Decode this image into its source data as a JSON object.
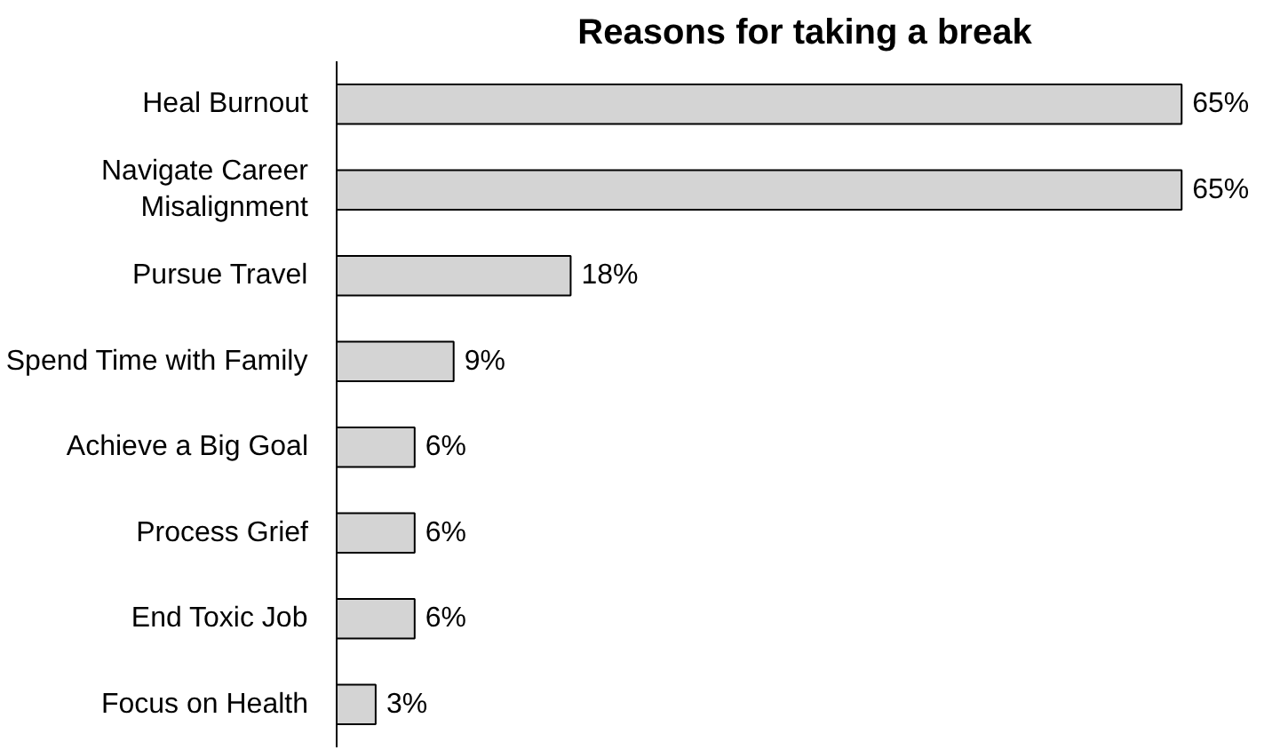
{
  "chart_data": {
    "type": "bar",
    "orientation": "horizontal",
    "title": "Reasons for taking a break",
    "categories": [
      "Heal Burnout",
      "Navigate Career\nMisalignment",
      "Pursue Travel",
      "Spend Time with Family",
      "Achieve a Big Goal",
      "Process Grief",
      "End Toxic Job",
      "Focus on Health"
    ],
    "values": [
      65,
      65,
      18,
      9,
      6,
      6,
      6,
      3
    ],
    "value_labels": [
      "65%",
      "65%",
      "18%",
      "9%",
      "6%",
      "6%",
      "6%",
      "3%"
    ],
    "color": "#d4d4d4",
    "grid": false
  }
}
